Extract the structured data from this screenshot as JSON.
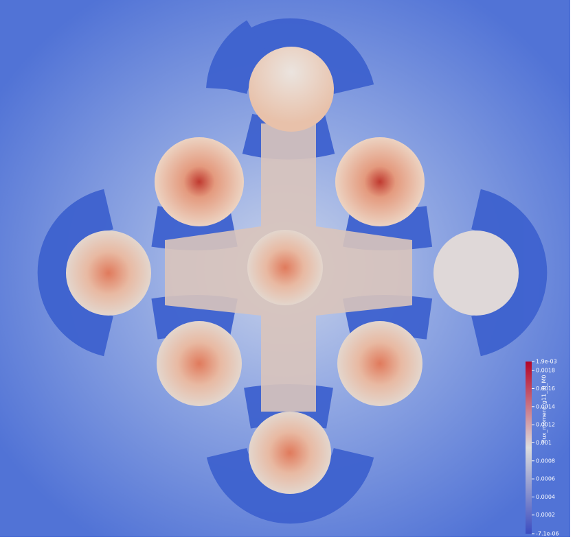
{
  "colorbar": {
    "title": "flux_moment_g11_l0_M0",
    "ticks": [
      {
        "value": 0.0019,
        "label": "1.9e-03"
      },
      0.0018,
      0.0016,
      0.0014,
      0.0012,
      0.001,
      0.0008,
      0.0006,
      0.0004,
      0.0002,
      {
        "value": -7.1e-06,
        "label": "-7.1e-06"
      }
    ]
  }
}
